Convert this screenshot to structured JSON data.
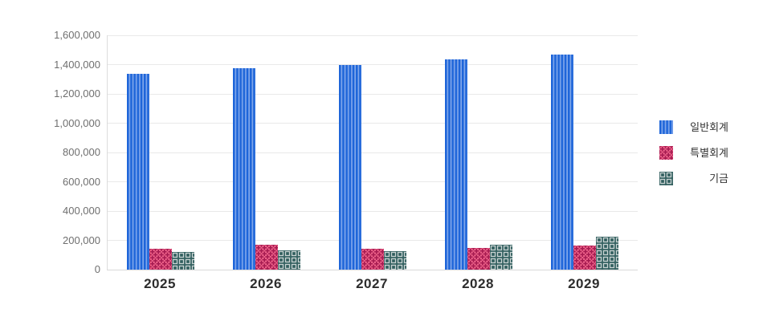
{
  "chart_data": {
    "type": "bar",
    "title": "",
    "categories": [
      "2025",
      "2026",
      "2027",
      "2028",
      "2029"
    ],
    "series": [
      {
        "name": "일반회계",
        "pattern": "vertical-stripes",
        "color": "#1e65d9",
        "accent": "#7fa6eb",
        "values": [
          1335000,
          1378000,
          1395000,
          1433000,
          1470000
        ]
      },
      {
        "name": "특별회계",
        "pattern": "plus-grid",
        "color": "#ed6189",
        "accent": "#a51a50",
        "values": [
          140000,
          170000,
          143000,
          146000,
          164000
        ]
      },
      {
        "name": "기금",
        "pattern": "square-grid",
        "color": "#315f5e",
        "accent": "#c9d3d2",
        "values": [
          120000,
          130000,
          124000,
          170000,
          225000
        ]
      }
    ],
    "xlabel": "",
    "ylabel": "",
    "ylim": [
      0,
      1600000
    ],
    "ytick_step": 200000,
    "ytick_labels": [
      "0",
      "200,000",
      "400,000",
      "600,000",
      "800,000",
      "1,000,000",
      "1,200,000",
      "1,400,000",
      "1,600,000"
    ],
    "grid": true,
    "legend_position": "right",
    "gridline_color": "#e9e9e9",
    "axis_line_color": "#d9d9d9",
    "ytick_color": "#6f6f6f",
    "xtick_color": "#2d2d2d"
  }
}
